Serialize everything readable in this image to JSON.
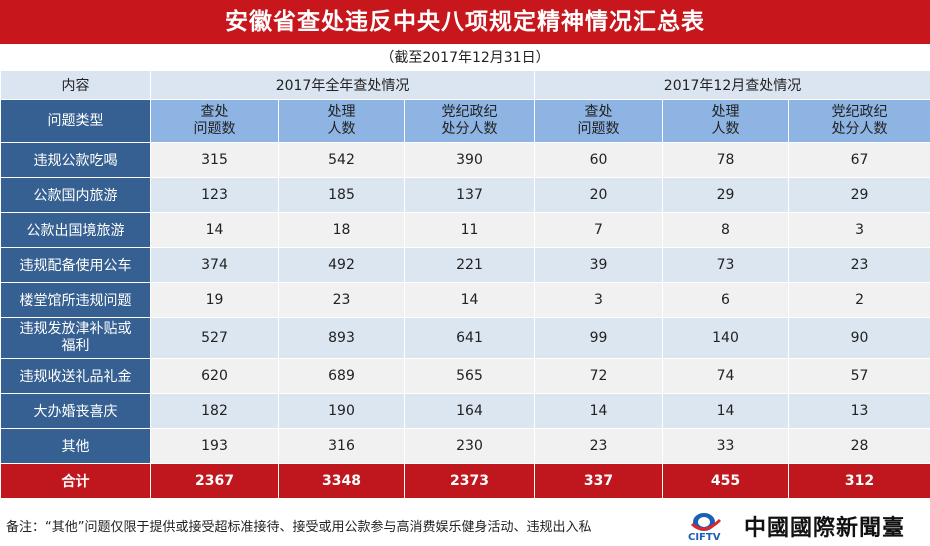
{
  "title": "安徽省查处违反中央八项规定精神情况汇总表",
  "subtitle": "（截至2017年12月31日）",
  "header": {
    "content_label": "内容",
    "group_year": "2017年全年查处情况",
    "group_month": "2017年12月查处情况",
    "type_label": "问题类型",
    "cols": [
      "查处\n问题数",
      "处理\n人数",
      "党纪政纪\n处分人数",
      "查处\n问题数",
      "处理\n人数",
      "党纪政纪\n处分人数"
    ]
  },
  "rows": [
    {
      "label": "违规公款吃喝",
      "values": [
        "315",
        "542",
        "390",
        "60",
        "78",
        "67"
      ]
    },
    {
      "label": "公款国内旅游",
      "values": [
        "123",
        "185",
        "137",
        "20",
        "29",
        "29"
      ]
    },
    {
      "label": "公款出国境旅游",
      "values": [
        "14",
        "18",
        "11",
        "7",
        "8",
        "3"
      ]
    },
    {
      "label": "违规配备使用公车",
      "values": [
        "374",
        "492",
        "221",
        "39",
        "73",
        "23"
      ]
    },
    {
      "label": "楼堂馆所违规问题",
      "values": [
        "19",
        "23",
        "14",
        "3",
        "6",
        "2"
      ]
    },
    {
      "label": "违规发放津补贴或\n福利",
      "values": [
        "527",
        "893",
        "641",
        "99",
        "140",
        "90"
      ]
    },
    {
      "label": "违规收送礼品礼金",
      "values": [
        "620",
        "689",
        "565",
        "72",
        "74",
        "57"
      ]
    },
    {
      "label": "大办婚丧喜庆",
      "values": [
        "182",
        "190",
        "164",
        "14",
        "14",
        "13"
      ]
    },
    {
      "label": "其他",
      "values": [
        "193",
        "316",
        "230",
        "23",
        "33",
        "28"
      ]
    }
  ],
  "total": {
    "label": "合计",
    "values": [
      "2367",
      "3348",
      "2373",
      "337",
      "455",
      "312"
    ]
  },
  "footer": {
    "note": "备注：“其他”问题仅限于提供或接受超标准接待、接受或用公款参与高消费娱乐健身活动、违规出入私",
    "logo_text": "中國國際新聞臺",
    "logo_mark_text": "CIFTV"
  },
  "colors": {
    "title_bg": "#c8161d",
    "label_bg": "#366092",
    "header_bg": "#8eb4e3",
    "total_bg": "#c0161d"
  }
}
